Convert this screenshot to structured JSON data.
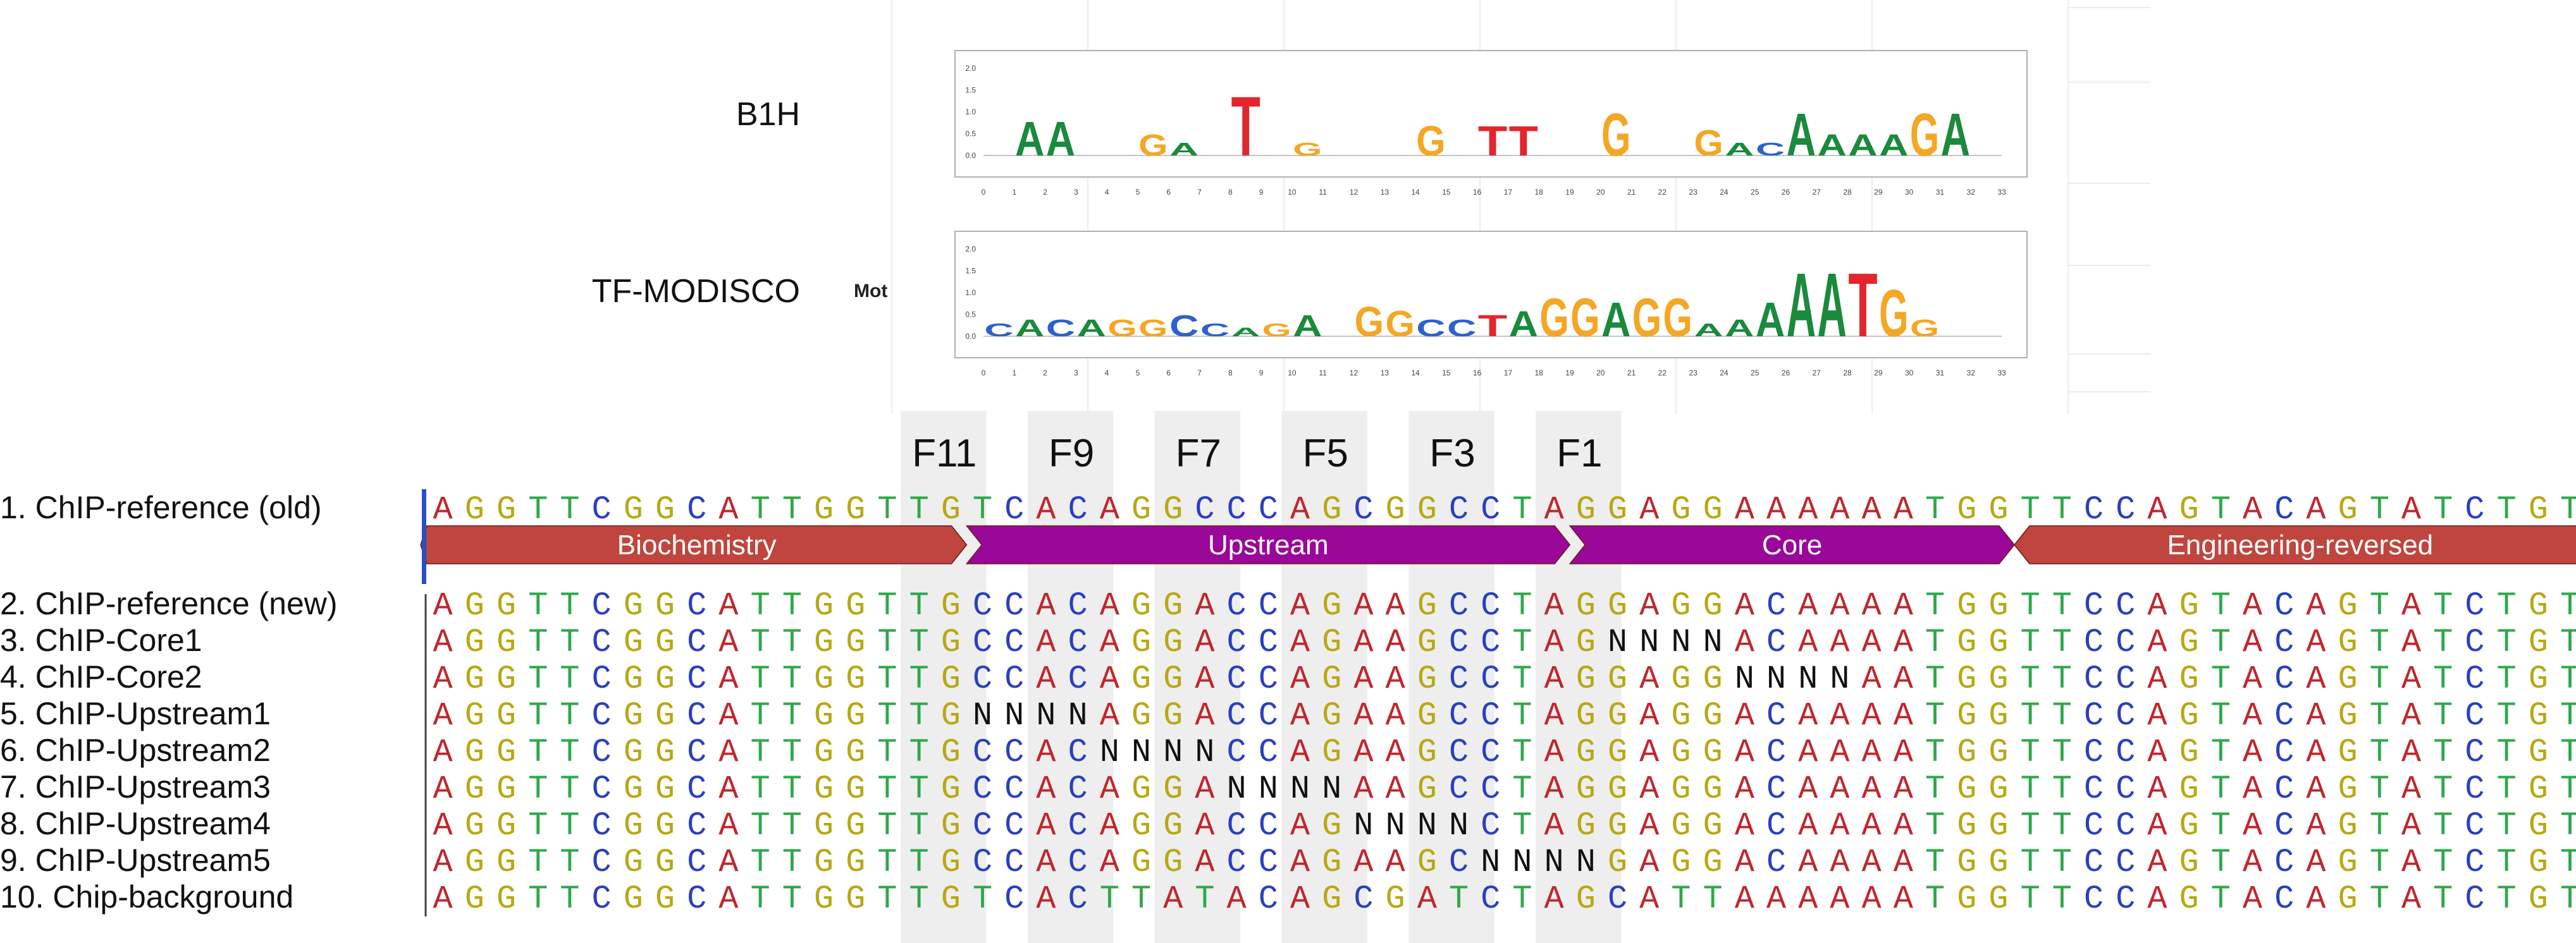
{
  "colors": {
    "A": "#c0262d",
    "G": "#b8a814",
    "T": "#2ea84a",
    "C": "#2a3fbf",
    "N": "#111111",
    "logo_A": "#1a8a3c",
    "logo_C": "#2d62c9",
    "logo_G": "#f5a623",
    "logo_T": "#e3262e",
    "biochemistry": "#c0453f",
    "purple": "#9a0899",
    "highlight": "#eeeeee"
  },
  "motifs": [
    {
      "label": "B1H",
      "y_ticks": [
        "2.0",
        "1.5",
        "1.0",
        "0.5",
        "0.0"
      ],
      "x_ticks": [
        "0",
        "1",
        "2",
        "3",
        "4",
        "5",
        "6",
        "7",
        "8",
        "9",
        "10",
        "11",
        "12",
        "13",
        "14",
        "15",
        "16",
        "17",
        "18",
        "19",
        "20",
        "21",
        "22",
        "23",
        "24",
        "25",
        "26",
        "27",
        "28",
        "29",
        "30",
        "31",
        "32",
        "33"
      ],
      "letters": [
        {
          "pos": 1,
          "letter": "A",
          "height": 0.8
        },
        {
          "pos": 2,
          "letter": "A",
          "height": 0.8
        },
        {
          "pos": 5,
          "letter": "G",
          "height": 0.5
        },
        {
          "pos": 6,
          "letter": "A",
          "height": 0.3
        },
        {
          "pos": 8,
          "letter": "T",
          "height": 1.4
        },
        {
          "pos": 10,
          "letter": "G",
          "height": 0.3
        },
        {
          "pos": 14,
          "letter": "G",
          "height": 0.7
        },
        {
          "pos": 16,
          "letter": "T",
          "height": 0.7
        },
        {
          "pos": 17,
          "letter": "T",
          "height": 0.7
        },
        {
          "pos": 20,
          "letter": "G",
          "height": 1.0
        },
        {
          "pos": 23,
          "letter": "G",
          "height": 0.6
        },
        {
          "pos": 24,
          "letter": "A",
          "height": 0.3
        },
        {
          "pos": 25,
          "letter": "C",
          "height": 0.3
        },
        {
          "pos": 26,
          "letter": "A",
          "height": 1.0
        },
        {
          "pos": 27,
          "letter": "A",
          "height": 0.5
        },
        {
          "pos": 28,
          "letter": "A",
          "height": 0.5
        },
        {
          "pos": 29,
          "letter": "A",
          "height": 0.5
        },
        {
          "pos": 30,
          "letter": "G",
          "height": 1.0
        },
        {
          "pos": 31,
          "letter": "A",
          "height": 1.0
        }
      ]
    },
    {
      "label": "TF-MODISCO",
      "side_text": "Mot",
      "y_ticks": [
        "2.0",
        "1.5",
        "1.0",
        "0.5",
        "0.0"
      ],
      "x_ticks": [
        "0",
        "1",
        "2",
        "3",
        "4",
        "5",
        "6",
        "7",
        "8",
        "9",
        "10",
        "11",
        "12",
        "13",
        "14",
        "15",
        "16",
        "17",
        "18",
        "19",
        "20",
        "21",
        "22",
        "23",
        "24",
        "25",
        "26",
        "27",
        "28",
        "29",
        "30",
        "31",
        "32",
        "33"
      ],
      "letters": [
        {
          "pos": 0,
          "letter": "C",
          "height": 0.3
        },
        {
          "pos": 1,
          "letter": "A",
          "height": 0.4
        },
        {
          "pos": 2,
          "letter": "C",
          "height": 0.4
        },
        {
          "pos": 3,
          "letter": "A",
          "height": 0.4
        },
        {
          "pos": 4,
          "letter": "G",
          "height": 0.4
        },
        {
          "pos": 5,
          "letter": "G",
          "height": 0.4
        },
        {
          "pos": 6,
          "letter": "C",
          "height": 0.5
        },
        {
          "pos": 7,
          "letter": "C",
          "height": 0.3
        },
        {
          "pos": 8,
          "letter": "A",
          "height": 0.2
        },
        {
          "pos": 9,
          "letter": "G",
          "height": 0.3
        },
        {
          "pos": 10,
          "letter": "A",
          "height": 0.5
        },
        {
          "pos": 12,
          "letter": "G",
          "height": 0.7
        },
        {
          "pos": 13,
          "letter": "G",
          "height": 0.6
        },
        {
          "pos": 14,
          "letter": "C",
          "height": 0.4
        },
        {
          "pos": 15,
          "letter": "C",
          "height": 0.4
        },
        {
          "pos": 16,
          "letter": "T",
          "height": 0.5
        },
        {
          "pos": 17,
          "letter": "A",
          "height": 0.6
        },
        {
          "pos": 18,
          "letter": "G",
          "height": 0.9
        },
        {
          "pos": 19,
          "letter": "G",
          "height": 0.9
        },
        {
          "pos": 20,
          "letter": "A",
          "height": 0.8
        },
        {
          "pos": 21,
          "letter": "G",
          "height": 0.9
        },
        {
          "pos": 22,
          "letter": "G",
          "height": 0.9
        },
        {
          "pos": 23,
          "letter": "A",
          "height": 0.3
        },
        {
          "pos": 24,
          "letter": "A",
          "height": 0.4
        },
        {
          "pos": 25,
          "letter": "A",
          "height": 0.8
        },
        {
          "pos": 26,
          "letter": "A",
          "height": 1.5
        },
        {
          "pos": 27,
          "letter": "A",
          "height": 1.5
        },
        {
          "pos": 28,
          "letter": "T",
          "height": 1.5
        },
        {
          "pos": 29,
          "letter": "G",
          "height": 1.1
        },
        {
          "pos": 30,
          "letter": "G",
          "height": 0.4
        }
      ]
    }
  ],
  "fingers": [
    "F11",
    "F9",
    "F7",
    "F5",
    "F3",
    "F1"
  ],
  "finger_columns": [
    15,
    19,
    23,
    27,
    31,
    35
  ],
  "sequences": [
    {
      "label": "1. ChIP-reference (old)",
      "seq": "AGGTTCGGCATTGGTTGTCACAGGCCCAGCGGCCTAGGAGGAAAAAATGGTTCCAGTACAGTATCTGT"
    },
    {
      "label": "2. ChIP-reference (new)",
      "seq": "AGGTTCGGCATTGGTTGCCACAGGACCAGAAGCCTAGGAGGACAAAATGGTTCCAGTACAGTATCTGT"
    },
    {
      "label": "3. ChIP-Core1",
      "seq": "AGGTTCGGCATTGGTTGCCACAGGACCAGAAGCCTAGNNNNACAAAATGGTTCCAGTACAGTATCTGT"
    },
    {
      "label": "4. ChIP-Core2",
      "seq": "AGGTTCGGCATTGGTTGCCACAGGACCAGAAGCCTAGGAGGNNNNAATGGTTCCAGTACAGTATCTGT"
    },
    {
      "label": "5. ChIP-Upstream1",
      "seq": "AGGTTCGGCATTGGTTGNNNNAGGACCAGAAGCCTAGGAGGACAAAATGGTTCCAGTACAGTATCTGT"
    },
    {
      "label": "6. ChIP-Upstream2",
      "seq": "AGGTTCGGCATTGGTTGCCACNNNNCCAGAAGCCTAGGAGGACAAAATGGTTCCAGTACAGTATCTGT"
    },
    {
      "label": "7. ChIP-Upstream3",
      "seq": "AGGTTCGGCATTGGTTGCCACAGGANNNNAAGCCTAGGAGGACAAAATGGTTCCAGTACAGTATCTGT"
    },
    {
      "label": "8. ChIP-Upstream4",
      "seq": "AGGTTCGGCATTGGTTGCCACAGGACCAGNNNNCTAGGAGGACAAAATGGTTCCAGTACAGTATCTGT"
    },
    {
      "label": "9. ChIP-Upstream5",
      "seq": "AGGTTCGGCATTGGTTGCCACAGGACCAGAAGCNNNNGAGGACAAAATGGTTCCAGTACAGTATCTGT"
    },
    {
      "label": "10. Chip-background",
      "seq": "AGGTTCGGCATTGGTTGTCACTTATACAGCGATCTAGCATTAAAAAATGGTTCCAGTACAGTATCTGT"
    }
  ],
  "features": [
    {
      "label": "Biochemistry",
      "start": 0,
      "end": 17,
      "direction": "both",
      "color_key": "biochemistry"
    },
    {
      "label": "Upstream",
      "start": 17,
      "end": 36,
      "direction": "right",
      "color_key": "purple"
    },
    {
      "label": "Core",
      "start": 36,
      "end": 50,
      "direction": "right",
      "color_key": "purple"
    },
    {
      "label": "Engineering-reversed",
      "start": 50,
      "end": 68,
      "direction": "left",
      "color_key": "biochemistry"
    }
  ]
}
